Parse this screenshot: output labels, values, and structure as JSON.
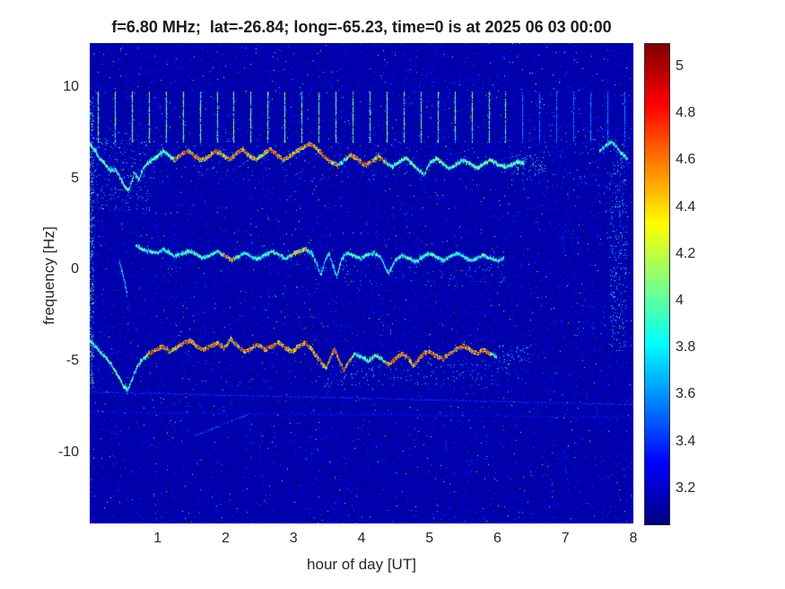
{
  "window": {
    "background": "#ffffff"
  },
  "colors": {
    "tick_label": "#262626",
    "title": "#1a1a1a",
    "figure_background": "#ffffff"
  },
  "chart_data": {
    "type": "heatmap",
    "title": "f=6.80 MHz;  lat=-26.84; long=-65.23, time=0 is at 2025 06 03 00:00",
    "xlabel": "hour of day [UT]",
    "ylabel": "frequency [Hz]",
    "xlim": [
      0,
      8
    ],
    "ylim": [
      -13.9,
      12.4
    ],
    "xticks": [
      1,
      2,
      3,
      4,
      5,
      6,
      7,
      8
    ],
    "yticks": [
      -10,
      -5,
      0,
      5,
      10
    ],
    "grid": false,
    "legend": false,
    "colormap": "jet",
    "background_value": 3.14,
    "colorbar": {
      "position": "right",
      "vmin": 3.05,
      "vmax": 5.1,
      "ticks": [
        3.2,
        3.4,
        3.6,
        3.8,
        4,
        4.2,
        4.4,
        4.6,
        4.8,
        5
      ]
    },
    "calibration_spikes": {
      "description": "vertical calibration marks every 15 minutes in upper band",
      "x_start": 0.125,
      "x_end": 7.875,
      "interval": 0.25,
      "y_min": 6.9,
      "y_max": 9.7,
      "value_range": [
        3.7,
        4.45
      ],
      "fade_after_x": 6.3,
      "fade_factor": 0.45
    },
    "traces": [
      {
        "name": "upper-doppler-trace",
        "core_value_range": [
          3.8,
          4.4
        ],
        "hot_value_range": [
          4.2,
          5.05
        ],
        "hot_regions": [
          [
            1.25,
            3.65
          ],
          [
            3.8,
            4.35
          ]
        ],
        "points": [
          [
            0,
            6.9
          ],
          [
            0.08,
            6.5
          ],
          [
            0.15,
            6.1
          ],
          [
            0.22,
            5.8
          ],
          [
            0.3,
            5.4
          ],
          [
            0.38,
            5.5
          ],
          [
            0.45,
            5.0
          ],
          [
            0.52,
            4.5
          ],
          [
            0.58,
            4.35
          ],
          [
            0.62,
            4.8
          ],
          [
            0.66,
            5.3
          ],
          [
            0.72,
            4.9
          ],
          [
            0.78,
            5.5
          ],
          [
            0.85,
            5.8
          ],
          [
            0.92,
            6.0
          ],
          [
            1.0,
            6.2
          ],
          [
            1.08,
            6.5
          ],
          [
            1.15,
            6.3
          ],
          [
            1.25,
            6.0
          ],
          [
            1.35,
            6.3
          ],
          [
            1.45,
            6.5
          ],
          [
            1.55,
            6.2
          ],
          [
            1.65,
            6.0
          ],
          [
            1.75,
            6.2
          ],
          [
            1.85,
            6.5
          ],
          [
            1.95,
            6.3
          ],
          [
            2.05,
            6.0
          ],
          [
            2.15,
            6.3
          ],
          [
            2.25,
            6.6
          ],
          [
            2.35,
            6.2
          ],
          [
            2.45,
            6.0
          ],
          [
            2.55,
            6.3
          ],
          [
            2.65,
            6.6
          ],
          [
            2.75,
            6.3
          ],
          [
            2.85,
            6.0
          ],
          [
            2.95,
            6.2
          ],
          [
            3.05,
            6.5
          ],
          [
            3.15,
            6.7
          ],
          [
            3.25,
            6.9
          ],
          [
            3.35,
            6.6
          ],
          [
            3.45,
            6.2
          ],
          [
            3.55,
            5.9
          ],
          [
            3.65,
            5.7
          ],
          [
            3.75,
            6.0
          ],
          [
            3.85,
            6.3
          ],
          [
            3.95,
            6.0
          ],
          [
            4.05,
            5.7
          ],
          [
            4.15,
            5.9
          ],
          [
            4.25,
            6.2
          ],
          [
            4.35,
            5.9
          ],
          [
            4.45,
            5.6
          ],
          [
            4.55,
            5.9
          ],
          [
            4.65,
            6.1
          ],
          [
            4.75,
            5.8
          ],
          [
            4.85,
            5.4
          ],
          [
            4.92,
            5.2
          ],
          [
            5.0,
            5.8
          ],
          [
            5.1,
            6.1
          ],
          [
            5.2,
            5.8
          ],
          [
            5.3,
            5.5
          ],
          [
            5.4,
            5.8
          ],
          [
            5.5,
            6.0
          ],
          [
            5.6,
            5.8
          ],
          [
            5.7,
            5.5
          ],
          [
            5.8,
            5.8
          ],
          [
            5.9,
            6.0
          ],
          [
            6.0,
            5.8
          ],
          [
            6.1,
            5.6
          ],
          [
            6.2,
            5.7
          ],
          [
            6.3,
            5.9
          ],
          [
            6.4,
            5.8
          ]
        ]
      },
      {
        "name": "upper-trace-right-fragment",
        "core_value_range": [
          3.6,
          4.35
        ],
        "points": [
          [
            7.5,
            6.5
          ],
          [
            7.6,
            6.8
          ],
          [
            7.68,
            7.0
          ],
          [
            7.76,
            6.7
          ],
          [
            7.84,
            6.3
          ],
          [
            7.92,
            6.0
          ]
        ]
      },
      {
        "name": "middle-trace-onset-dash",
        "core_value_range": [
          3.7,
          4.3
        ],
        "points": [
          [
            0.44,
            0.4
          ],
          [
            0.5,
            -0.4
          ],
          [
            0.56,
            -1.5
          ]
        ]
      },
      {
        "name": "middle-doppler-trace",
        "core_value_range": [
          3.75,
          4.3
        ],
        "hot_value_range": [
          4.1,
          4.7
        ],
        "hot_regions": [
          [
            1.95,
            2.15
          ],
          [
            2.95,
            3.2
          ]
        ],
        "points": [
          [
            0.68,
            1.3
          ],
          [
            0.78,
            1.1
          ],
          [
            0.88,
            1.0
          ],
          [
            0.98,
            0.9
          ],
          [
            1.08,
            1.1
          ],
          [
            1.18,
            0.9
          ],
          [
            1.28,
            0.7
          ],
          [
            1.38,
            0.9
          ],
          [
            1.48,
            1.0
          ],
          [
            1.58,
            0.8
          ],
          [
            1.68,
            0.6
          ],
          [
            1.78,
            0.8
          ],
          [
            1.88,
            1.0
          ],
          [
            1.98,
            0.8
          ],
          [
            2.08,
            0.5
          ],
          [
            2.18,
            0.7
          ],
          [
            2.28,
            0.9
          ],
          [
            2.38,
            0.7
          ],
          [
            2.48,
            0.6
          ],
          [
            2.58,
            0.8
          ],
          [
            2.68,
            1.0
          ],
          [
            2.78,
            0.8
          ],
          [
            2.88,
            0.6
          ],
          [
            2.98,
            0.8
          ],
          [
            3.08,
            1.0
          ],
          [
            3.18,
            1.1
          ],
          [
            3.28,
            0.9
          ],
          [
            3.34,
            0.3
          ],
          [
            3.4,
            -0.3
          ],
          [
            3.46,
            0.5
          ],
          [
            3.52,
            0.9
          ],
          [
            3.58,
            0.2
          ],
          [
            3.64,
            -0.4
          ],
          [
            3.7,
            0.5
          ],
          [
            3.78,
            0.9
          ],
          [
            3.88,
            0.8
          ],
          [
            3.98,
            0.6
          ],
          [
            4.08,
            0.8
          ],
          [
            4.18,
            0.9
          ],
          [
            4.28,
            0.7
          ],
          [
            4.34,
            0.2
          ],
          [
            4.4,
            -0.2
          ],
          [
            4.5,
            0.5
          ],
          [
            4.6,
            0.8
          ],
          [
            4.7,
            0.6
          ],
          [
            4.8,
            0.4
          ],
          [
            4.9,
            0.7
          ],
          [
            5.0,
            0.9
          ],
          [
            5.1,
            0.7
          ],
          [
            5.2,
            0.5
          ],
          [
            5.3,
            0.7
          ],
          [
            5.4,
            0.9
          ],
          [
            5.5,
            0.7
          ],
          [
            5.6,
            0.5
          ],
          [
            5.7,
            0.6
          ],
          [
            5.8,
            0.8
          ],
          [
            5.9,
            0.6
          ],
          [
            6.0,
            0.5
          ],
          [
            6.1,
            0.6
          ]
        ]
      },
      {
        "name": "lower-doppler-trace",
        "core_value_range": [
          3.8,
          4.45
        ],
        "hot_value_range": [
          4.3,
          5.1
        ],
        "hot_regions": [
          [
            0.85,
            3.85
          ],
          [
            4.35,
            5.9
          ]
        ],
        "points": [
          [
            0,
            -3.9
          ],
          [
            0.1,
            -4.3
          ],
          [
            0.2,
            -4.7
          ],
          [
            0.3,
            -5.1
          ],
          [
            0.4,
            -5.7
          ],
          [
            0.5,
            -6.4
          ],
          [
            0.56,
            -6.6
          ],
          [
            0.62,
            -6.1
          ],
          [
            0.7,
            -5.3
          ],
          [
            0.78,
            -4.9
          ],
          [
            0.88,
            -4.6
          ],
          [
            0.98,
            -4.4
          ],
          [
            1.08,
            -4.2
          ],
          [
            1.18,
            -4.5
          ],
          [
            1.28,
            -4.3
          ],
          [
            1.38,
            -4.0
          ],
          [
            1.48,
            -3.9
          ],
          [
            1.58,
            -4.2
          ],
          [
            1.68,
            -4.4
          ],
          [
            1.78,
            -4.2
          ],
          [
            1.88,
            -4.0
          ],
          [
            1.98,
            -4.3
          ],
          [
            2.08,
            -3.8
          ],
          [
            2.18,
            -4.2
          ],
          [
            2.28,
            -4.5
          ],
          [
            2.38,
            -4.3
          ],
          [
            2.48,
            -4.1
          ],
          [
            2.58,
            -4.4
          ],
          [
            2.68,
            -4.2
          ],
          [
            2.78,
            -4.0
          ],
          [
            2.88,
            -4.3
          ],
          [
            2.98,
            -4.5
          ],
          [
            3.08,
            -4.2
          ],
          [
            3.18,
            -4.0
          ],
          [
            3.28,
            -4.4
          ],
          [
            3.38,
            -5.0
          ],
          [
            3.48,
            -5.4
          ],
          [
            3.54,
            -4.8
          ],
          [
            3.6,
            -4.4
          ],
          [
            3.68,
            -5.0
          ],
          [
            3.74,
            -5.5
          ],
          [
            3.82,
            -5.0
          ],
          [
            3.9,
            -4.6
          ],
          [
            4.0,
            -4.8
          ],
          [
            4.1,
            -5.0
          ],
          [
            4.2,
            -4.7
          ],
          [
            4.3,
            -4.9
          ],
          [
            4.4,
            -5.2
          ],
          [
            4.5,
            -4.9
          ],
          [
            4.6,
            -4.6
          ],
          [
            4.7,
            -4.9
          ],
          [
            4.76,
            -5.3
          ],
          [
            4.84,
            -4.9
          ],
          [
            4.92,
            -4.6
          ],
          [
            5.0,
            -4.5
          ],
          [
            5.1,
            -4.7
          ],
          [
            5.2,
            -4.9
          ],
          [
            5.3,
            -4.6
          ],
          [
            5.4,
            -4.3
          ],
          [
            5.5,
            -4.2
          ],
          [
            5.6,
            -4.4
          ],
          [
            5.7,
            -4.6
          ],
          [
            5.8,
            -4.4
          ],
          [
            5.9,
            -4.6
          ],
          [
            6.0,
            -4.8
          ]
        ]
      }
    ],
    "faint_lines": [
      {
        "x1": 0,
        "y1": -6.7,
        "x2": 8,
        "y2": -7.4,
        "value": 3.42
      },
      {
        "x1": 0,
        "y1": -7.8,
        "x2": 8,
        "y2": -8.1,
        "value": 3.34
      },
      {
        "x1": 1.55,
        "y1": -9.1,
        "x2": 2.35,
        "y2": -7.9,
        "value": 3.5
      }
    ],
    "scatter_clouds": [
      {
        "name": "left-edge-column",
        "x_range": [
          0,
          0.06
        ],
        "y_range": [
          -6.5,
          9.5
        ],
        "density": 0.25,
        "value_range": [
          3.4,
          4.2
        ]
      },
      {
        "name": "onset-speckle",
        "x_range": [
          0.05,
          0.9
        ],
        "y_range": [
          3.2,
          7.2
        ],
        "density": 0.05,
        "value_range": [
          3.35,
          4.05
        ]
      },
      {
        "name": "upper-band-speckle",
        "x_range": [
          0.9,
          6.5
        ],
        "y_range": [
          4.8,
          7.0
        ],
        "density": 0.012,
        "value_range": [
          3.35,
          3.9
        ]
      },
      {
        "name": "below-lower-trace",
        "x_range": [
          3.3,
          6.2
        ],
        "y_range": [
          -6.4,
          -5.0
        ],
        "density": 0.03,
        "value_range": [
          3.35,
          4.0
        ]
      },
      {
        "name": "middle-band-speckle",
        "x_range": [
          3.3,
          6.1
        ],
        "y_range": [
          -0.9,
          0.3
        ],
        "density": 0.02,
        "value_range": [
          3.35,
          3.95
        ]
      },
      {
        "name": "trace-fadeout-upper",
        "x_range": [
          6.2,
          6.7
        ],
        "y_range": [
          5.2,
          6.3
        ],
        "density": 0.1,
        "value_range": [
          3.4,
          4.1
        ]
      },
      {
        "name": "trace-fadeout-lower",
        "x_range": [
          6.0,
          6.5
        ],
        "y_range": [
          -5.1,
          -4.1
        ],
        "density": 0.07,
        "value_range": [
          3.4,
          4.0
        ]
      },
      {
        "name": "right-edge-band",
        "x_range": [
          7.65,
          7.9
        ],
        "y_range": [
          -4.5,
          6.5
        ],
        "density": 0.08,
        "value_range": [
          3.35,
          4.05
        ]
      },
      {
        "name": "right-upper-speckle",
        "x_range": [
          6.6,
          8.0
        ],
        "y_range": [
          4.5,
          7.5
        ],
        "density": 0.015,
        "value_range": [
          3.35,
          3.95
        ]
      }
    ]
  }
}
